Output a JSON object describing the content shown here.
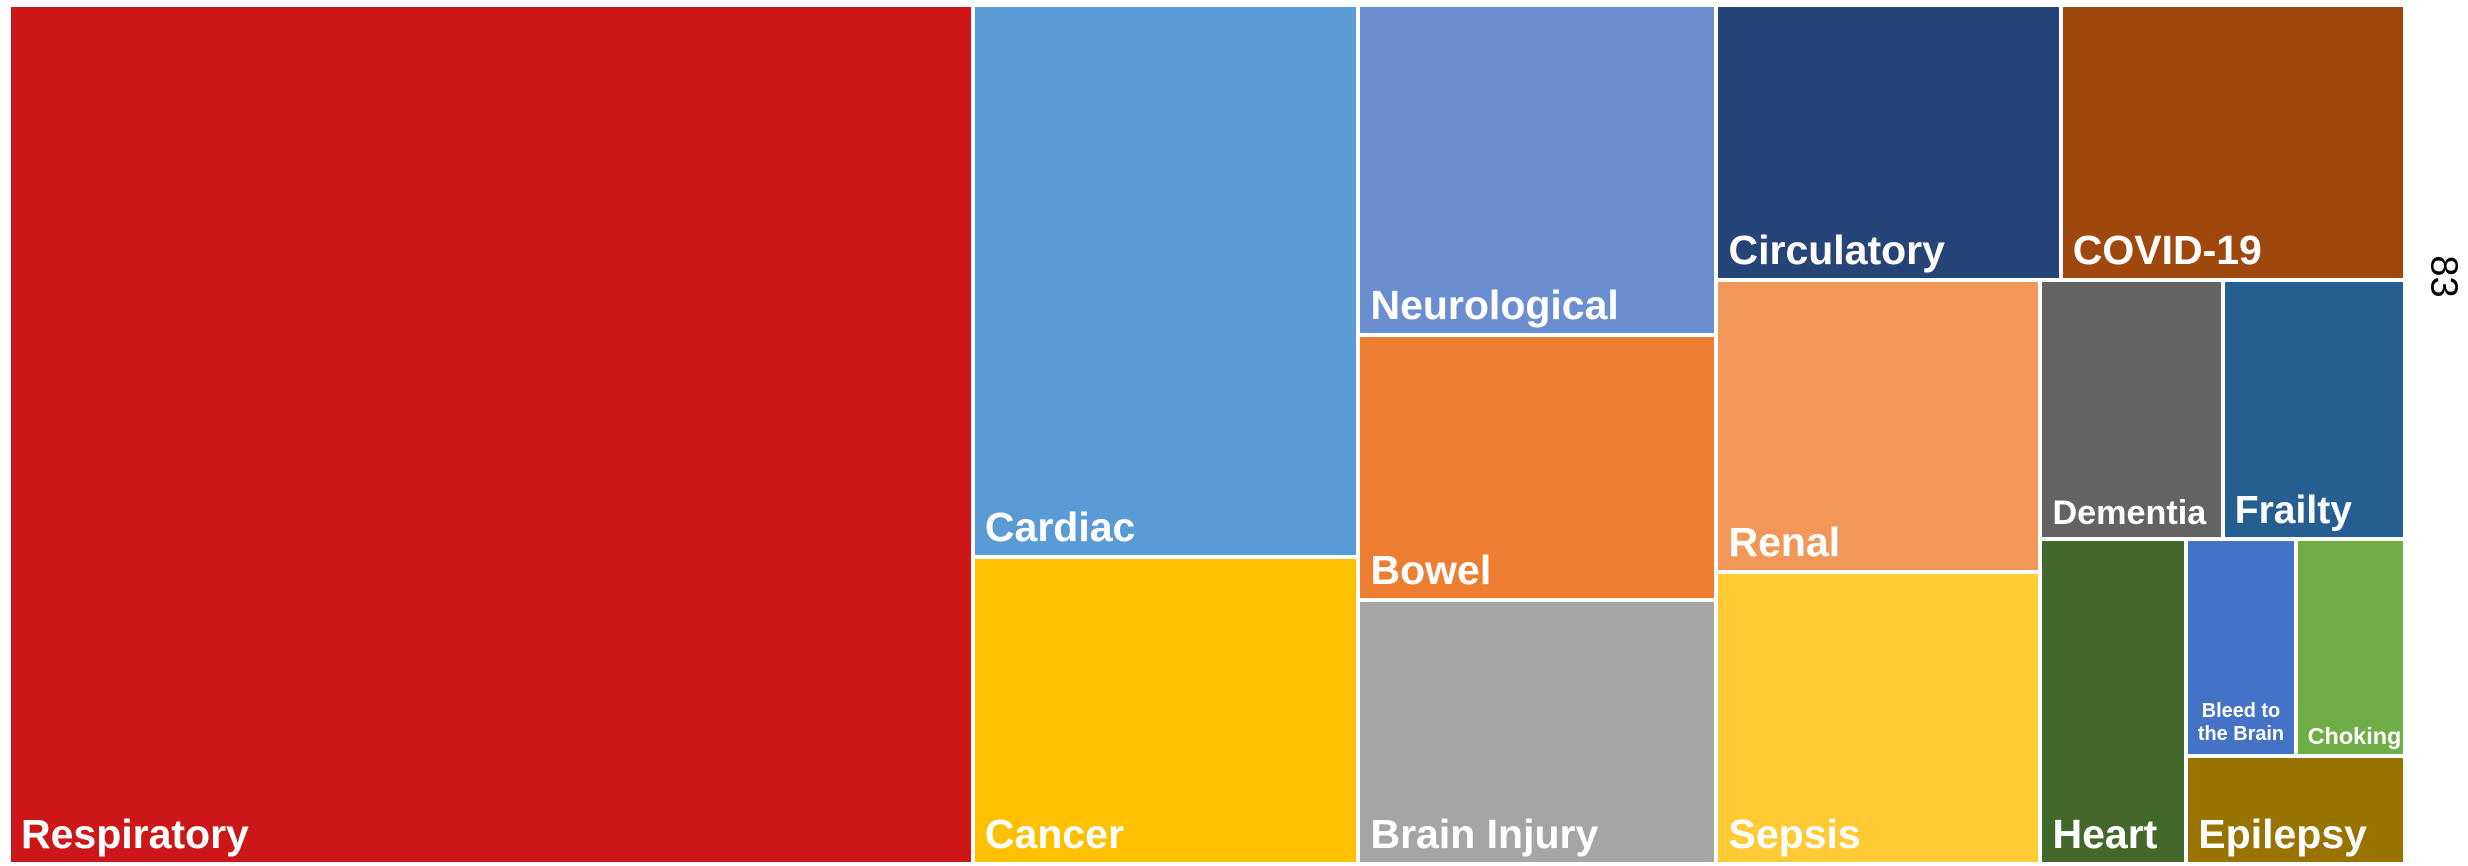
{
  "chart_data": {
    "type": "treemap",
    "categories": [
      "Respiratory",
      "Cardiac",
      "Cancer",
      "Neurological",
      "Bowel",
      "Brain Injury",
      "Circulatory",
      "COVID-19",
      "Renal",
      "Sepsis",
      "Dementia",
      "Frailty",
      "Heart",
      "Bleed to the Brain",
      "Choking",
      "Epilepsy"
    ],
    "values": [
      35,
      9,
      5,
      5,
      4,
      4,
      4,
      4,
      4,
      4,
      2,
      2,
      2,
      1,
      1,
      1
    ],
    "colors": [
      "#cc1618",
      "#5b9bd5",
      "#ffc000",
      "#6a8ecf",
      "#ed7d31",
      "#a5a5a5",
      "#264478",
      "#9e480e",
      "#f1975a",
      "#ffca33",
      "#636363",
      "#255e91",
      "#43682b",
      "#4472c4",
      "#70ad47",
      "#997300"
    ],
    "side_label": "83"
  }
}
